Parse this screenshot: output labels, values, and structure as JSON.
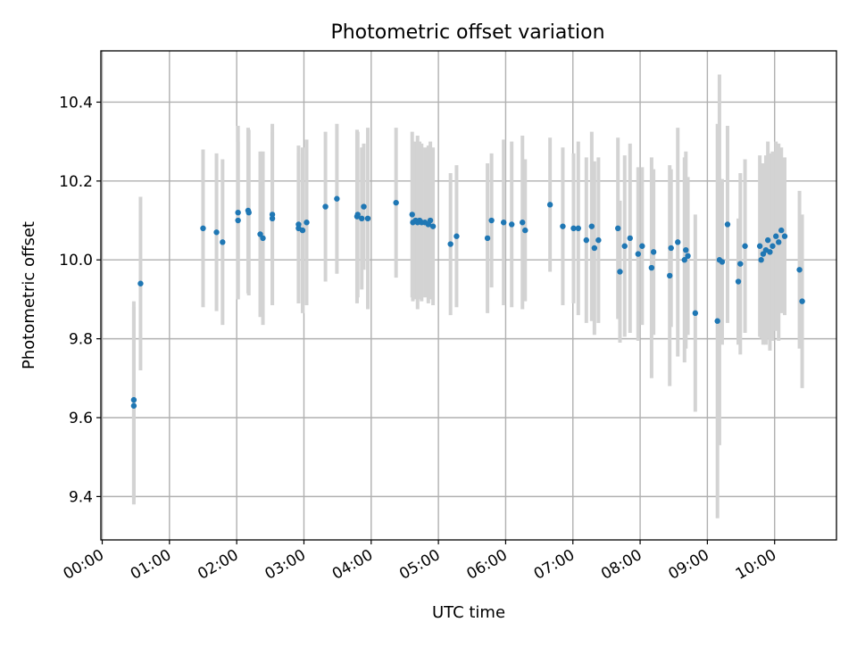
{
  "chart_data": {
    "type": "scatter",
    "title": "Photometric offset variation",
    "xlabel": "UTC time",
    "ylabel": "Photometric offset",
    "x_unit": "hours UTC",
    "xlim": [
      -0.02,
      10.92
    ],
    "ylim": [
      9.29,
      10.53
    ],
    "x_ticks": [
      0,
      1,
      2,
      3,
      4,
      5,
      6,
      7,
      8,
      9,
      10
    ],
    "x_tick_labels": [
      "00:00",
      "01:00",
      "02:00",
      "03:00",
      "04:00",
      "05:00",
      "06:00",
      "07:00",
      "08:00",
      "09:00",
      "10:00"
    ],
    "y_ticks": [
      9.4,
      9.6,
      9.8,
      10.0,
      10.2,
      10.4
    ],
    "y_tick_labels": [
      "9.4",
      "9.6",
      "9.8",
      "10.0",
      "10.2",
      "10.4"
    ],
    "grid": true,
    "marker_color": "#1f77b4",
    "errorbar_color": "#d3d3d3",
    "series": [
      {
        "x": [
          0.47,
          0.47,
          0.57,
          1.5,
          1.7,
          1.79,
          2.02,
          2.02,
          2.17,
          2.18,
          2.35,
          2.39,
          2.53,
          2.53,
          2.92,
          2.92,
          2.98,
          3.04,
          3.32,
          3.49,
          3.79,
          3.8,
          3.86,
          3.89,
          3.95,
          4.37,
          4.61,
          4.62,
          4.66,
          4.69,
          4.72,
          4.75,
          4.8,
          4.85,
          4.88,
          4.92,
          5.18,
          5.27,
          5.73,
          5.79,
          5.97,
          6.09,
          6.25,
          6.29,
          6.66,
          6.85,
          7.01,
          7.08,
          7.2,
          7.28,
          7.32,
          7.38,
          7.67,
          7.7,
          7.77,
          7.85,
          7.97,
          8.03,
          8.17,
          8.2,
          8.44,
          8.46,
          8.56,
          8.66,
          8.68,
          8.71,
          8.82,
          9.15,
          9.18,
          9.22,
          9.3,
          9.46,
          9.49,
          9.56,
          9.78,
          9.8,
          9.83,
          9.87,
          9.9,
          9.93,
          9.97,
          10.02,
          10.06,
          10.1,
          10.15,
          10.37,
          10.41
        ],
        "y": [
          9.63,
          9.645,
          9.94,
          10.08,
          10.07,
          10.045,
          10.12,
          10.1,
          10.125,
          10.12,
          10.065,
          10.055,
          10.115,
          10.105,
          10.09,
          10.08,
          10.075,
          10.095,
          10.135,
          10.155,
          10.11,
          10.115,
          10.105,
          10.135,
          10.105,
          10.145,
          10.115,
          10.095,
          10.1,
          10.095,
          10.1,
          10.095,
          10.095,
          10.09,
          10.1,
          10.085,
          10.04,
          10.06,
          10.055,
          10.1,
          10.095,
          10.09,
          10.095,
          10.075,
          10.14,
          10.085,
          10.08,
          10.08,
          10.05,
          10.085,
          10.03,
          10.05,
          10.08,
          9.97,
          10.035,
          10.055,
          10.015,
          10.035,
          9.98,
          10.02,
          9.96,
          10.03,
          10.045,
          10.0,
          10.025,
          10.01,
          9.865,
          9.845,
          10.0,
          9.995,
          10.09,
          9.945,
          9.99,
          10.035,
          10.035,
          10.0,
          10.015,
          10.025,
          10.05,
          10.02,
          10.035,
          10.06,
          10.045,
          10.075,
          10.06,
          9.975,
          9.895
        ],
        "yerr": [
          0.25,
          0.25,
          0.22,
          0.2,
          0.2,
          0.21,
          0.22,
          0.2,
          0.21,
          0.21,
          0.21,
          0.22,
          0.23,
          0.22,
          0.2,
          0.19,
          0.21,
          0.21,
          0.19,
          0.19,
          0.22,
          0.21,
          0.18,
          0.16,
          0.23,
          0.19,
          0.21,
          0.2,
          0.2,
          0.22,
          0.2,
          0.2,
          0.19,
          0.2,
          0.2,
          0.2,
          0.18,
          0.18,
          0.19,
          0.17,
          0.21,
          0.21,
          0.22,
          0.18,
          0.17,
          0.2,
          0.19,
          0.22,
          0.21,
          0.24,
          0.22,
          0.21,
          0.23,
          0.18,
          0.23,
          0.24,
          0.22,
          0.2,
          0.28,
          0.21,
          0.28,
          0.2,
          0.29,
          0.26,
          0.25,
          0.2,
          0.25,
          0.5,
          0.47,
          0.21,
          0.25,
          0.16,
          0.23,
          0.22,
          0.23,
          0.2,
          0.23,
          0.24,
          0.25,
          0.25,
          0.24,
          0.24,
          0.25,
          0.21,
          0.2,
          0.2,
          0.22
        ]
      }
    ]
  }
}
